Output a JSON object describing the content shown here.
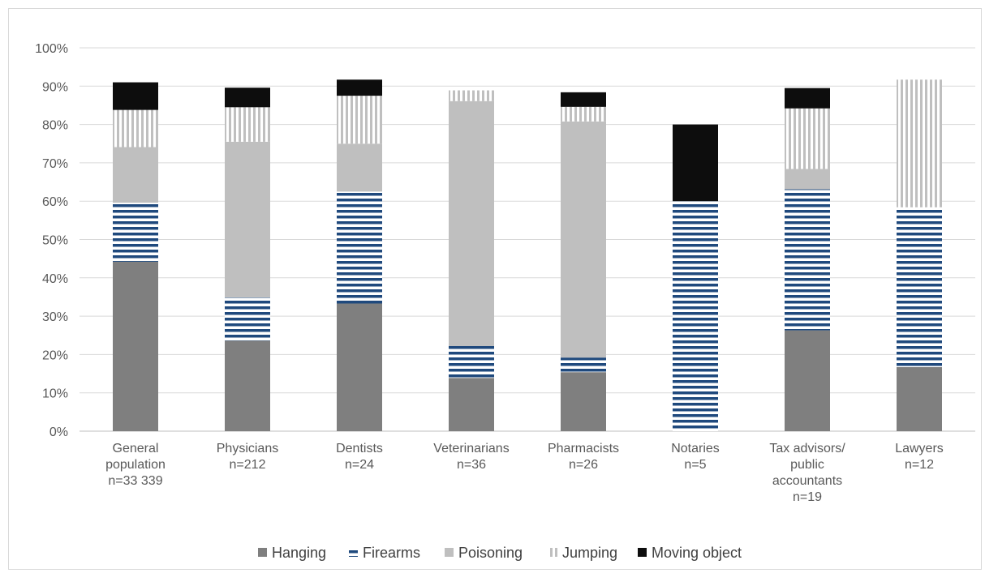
{
  "chart_data": {
    "type": "bar",
    "stacked": true,
    "ylim": [
      0,
      100
    ],
    "yticks": [
      "0%",
      "10%",
      "20%",
      "30%",
      "40%",
      "50%",
      "60%",
      "70%",
      "80%",
      "90%",
      "100%"
    ],
    "grid": true,
    "legend_position": "bottom",
    "categories": [
      [
        "General",
        "population",
        "n=33 339"
      ],
      [
        "Physicians",
        "n=212"
      ],
      [
        "Dentists",
        "n=24"
      ],
      [
        "Veterinarians",
        "n=36"
      ],
      [
        "Pharmacists",
        "n=26"
      ],
      [
        "Notaries",
        "n=5"
      ],
      [
        "Tax advisors/",
        "public",
        "accountants",
        "n=19"
      ],
      [
        "Lawyers",
        "n=12"
      ]
    ],
    "series": [
      {
        "name": "Hanging",
        "pattern": "solid",
        "color": "#7f7f7f",
        "values": [
          44.2,
          23.6,
          33.3,
          13.9,
          15.4,
          0,
          26.3,
          16.7
        ]
      },
      {
        "name": "Firearms",
        "pattern": "horizontal-stripes",
        "color": "#1f497d",
        "values": [
          15.4,
          11.3,
          29.2,
          8.3,
          3.8,
          60.0,
          36.8,
          41.7
        ]
      },
      {
        "name": "Poisoning",
        "pattern": "solid",
        "color": "#bfbfbf",
        "values": [
          14.5,
          40.6,
          12.5,
          63.9,
          61.6,
          0,
          5.3,
          0
        ]
      },
      {
        "name": "Jumping",
        "pattern": "vertical-stripes",
        "color": "#bfbfbf",
        "values": [
          9.7,
          9.0,
          12.5,
          2.8,
          3.8,
          0,
          15.8,
          33.3
        ]
      },
      {
        "name": "Moving object",
        "pattern": "solid",
        "color": "#0d0d0d",
        "values": [
          7.2,
          5.1,
          4.2,
          0,
          3.8,
          20.0,
          5.3,
          0
        ]
      }
    ]
  }
}
